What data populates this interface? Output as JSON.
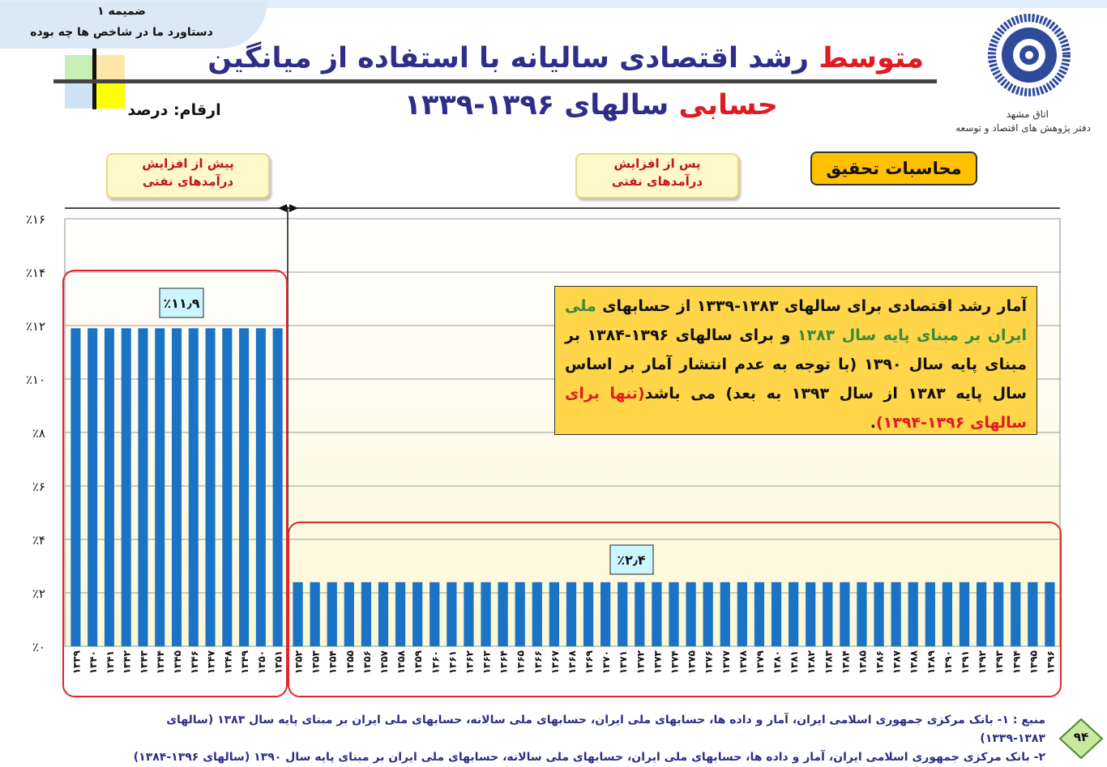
{
  "header": {
    "annex_label": "ضمیمه ۱",
    "annex_subtitle": "دستاورد ما در شاخص ها چه بوده",
    "title_word_red": "متوسط",
    "title_line1_rest": "رشد اقتصادی سالیانه با استفاده از میانگین",
    "title_line2_red": "حسابی",
    "title_line2_rest": "سالهای ۱۳۹۶-۱۳۳۹",
    "units_label": "ارقام: درصد",
    "org_line1": "اتاق مشهد",
    "org_line2": "دفتر پژوهش های اقتصاد و توسعه"
  },
  "labels": {
    "phase_before_line1": "پیش از افزایش",
    "phase_before_line2": "درآمدهای نفتی",
    "phase_after_line1": "پس از افزایش",
    "phase_after_line2": "درآمدهای نفتی",
    "research_box": "محاسبات تحقیق",
    "avg_before": "٪۱۱٫۹",
    "avg_after": "٪۲٫۴"
  },
  "note": {
    "seg1": "آمار رشد اقتصادی برای سالهای ۱۳۸۳-۱۳۳۹ از حسابهای ",
    "seg2": "ملی ایران بر مبنای پایه سال ۱۳۸۳",
    "seg3": " و برای سالهای ۱۳۹۶-۱۳۸۴ بر مبنای پایه سال ۱۳۹۰ (با توجه به عدم انتشار آمار بر اساس سال پایه ۱۳۸۳ از سال ۱۳۹۳ به بعد) می باشد",
    "seg4": "(تنها برای سالهای ۱۳۹۶-۱۳۹۴)",
    "seg5": "."
  },
  "source": {
    "line1": "منبع : ۱- بانک مرکزی جمهوری اسلامی ایران، آمار و داده ها، حسابهای ملی ایران، حسابهای ملی سالانه، حسابهای ملی ایران بر مبنای پایه سال ۱۳۸۳ (سالهای ۱۳۸۳-۱۳۳۹)",
    "line2": "۲- بانک مرکزی جمهوری اسلامی ایران، آمار و داده ها، حسابهای ملی ایران، حسابهای ملی سالانه، حسابهای ملی ایران بر مبنای پایه سال ۱۳۹۰ (سالهای ۱۳۹۶-۱۳۸۴)"
  },
  "page_number": "۹۴",
  "colors": {
    "bar": "#1a73c4",
    "title": "#2e2e8a",
    "accent_red": "#e11b22",
    "highlight_frame": "#e0262c",
    "note_bg": "#ffd54a",
    "avg_label_bg": "#ccf6ff"
  },
  "chart_data": {
    "type": "bar",
    "categories": [
      "۱۳۳۹",
      "۱۳۴۰",
      "۱۳۴۱",
      "۱۳۴۲",
      "۱۳۴۳",
      "۱۳۴۴",
      "۱۳۴۵",
      "۱۳۴۶",
      "۱۳۴۷",
      "۱۳۴۸",
      "۱۳۴۹",
      "۱۳۵۰",
      "۱۳۵۱",
      "۱۳۵۲",
      "۱۳۵۳",
      "۱۳۵۴",
      "۱۳۵۵",
      "۱۳۵۶",
      "۱۳۵۷",
      "۱۳۵۸",
      "۱۳۵۹",
      "۱۳۶۰",
      "۱۳۶۱",
      "۱۳۶۲",
      "۱۳۶۳",
      "۱۳۶۴",
      "۱۳۶۵",
      "۱۳۶۶",
      "۱۳۶۷",
      "۱۳۶۸",
      "۱۳۶۹",
      "۱۳۷۰",
      "۱۳۷۱",
      "۱۳۷۲",
      "۱۳۷۳",
      "۱۳۷۴",
      "۱۳۷۵",
      "۱۳۷۶",
      "۱۳۷۷",
      "۱۳۷۸",
      "۱۳۷۹",
      "۱۳۸۰",
      "۱۳۸۱",
      "۱۳۸۲",
      "۱۳۸۳",
      "۱۳۸۴",
      "۱۳۸۵",
      "۱۳۸۶",
      "۱۳۸۷",
      "۱۳۸۸",
      "۱۳۸۹",
      "۱۳۹۰",
      "۱۳۹۱",
      "۱۳۹۲",
      "۱۳۹۳",
      "۱۳۹۴",
      "۱۳۹۵",
      "۱۳۹۶"
    ],
    "values": [
      11.9,
      11.9,
      11.9,
      11.9,
      11.9,
      11.9,
      11.9,
      11.9,
      11.9,
      11.9,
      11.9,
      11.9,
      11.9,
      2.4,
      2.4,
      2.4,
      2.4,
      2.4,
      2.4,
      2.4,
      2.4,
      2.4,
      2.4,
      2.4,
      2.4,
      2.4,
      2.4,
      2.4,
      2.4,
      2.4,
      2.4,
      2.4,
      2.4,
      2.4,
      2.4,
      2.4,
      2.4,
      2.4,
      2.4,
      2.4,
      2.4,
      2.4,
      2.4,
      2.4,
      2.4,
      2.4,
      2.4,
      2.4,
      2.4,
      2.4,
      2.4,
      2.4,
      2.4,
      2.4,
      2.4,
      2.4,
      2.4,
      2.4
    ],
    "split_after_category": "۱۳۵۱",
    "ylim": [
      0,
      16
    ],
    "yticks": [
      0,
      2,
      4,
      6,
      8,
      10,
      12,
      14,
      16
    ],
    "ytick_labels": [
      "٪۰",
      "٪۲",
      "٪۴",
      "٪۶",
      "٪۸",
      "٪۱۰",
      "٪۱۲",
      "٪۱۴",
      "٪۱۶"
    ],
    "grid": true,
    "title": "",
    "xlabel": "",
    "ylabel": ""
  }
}
